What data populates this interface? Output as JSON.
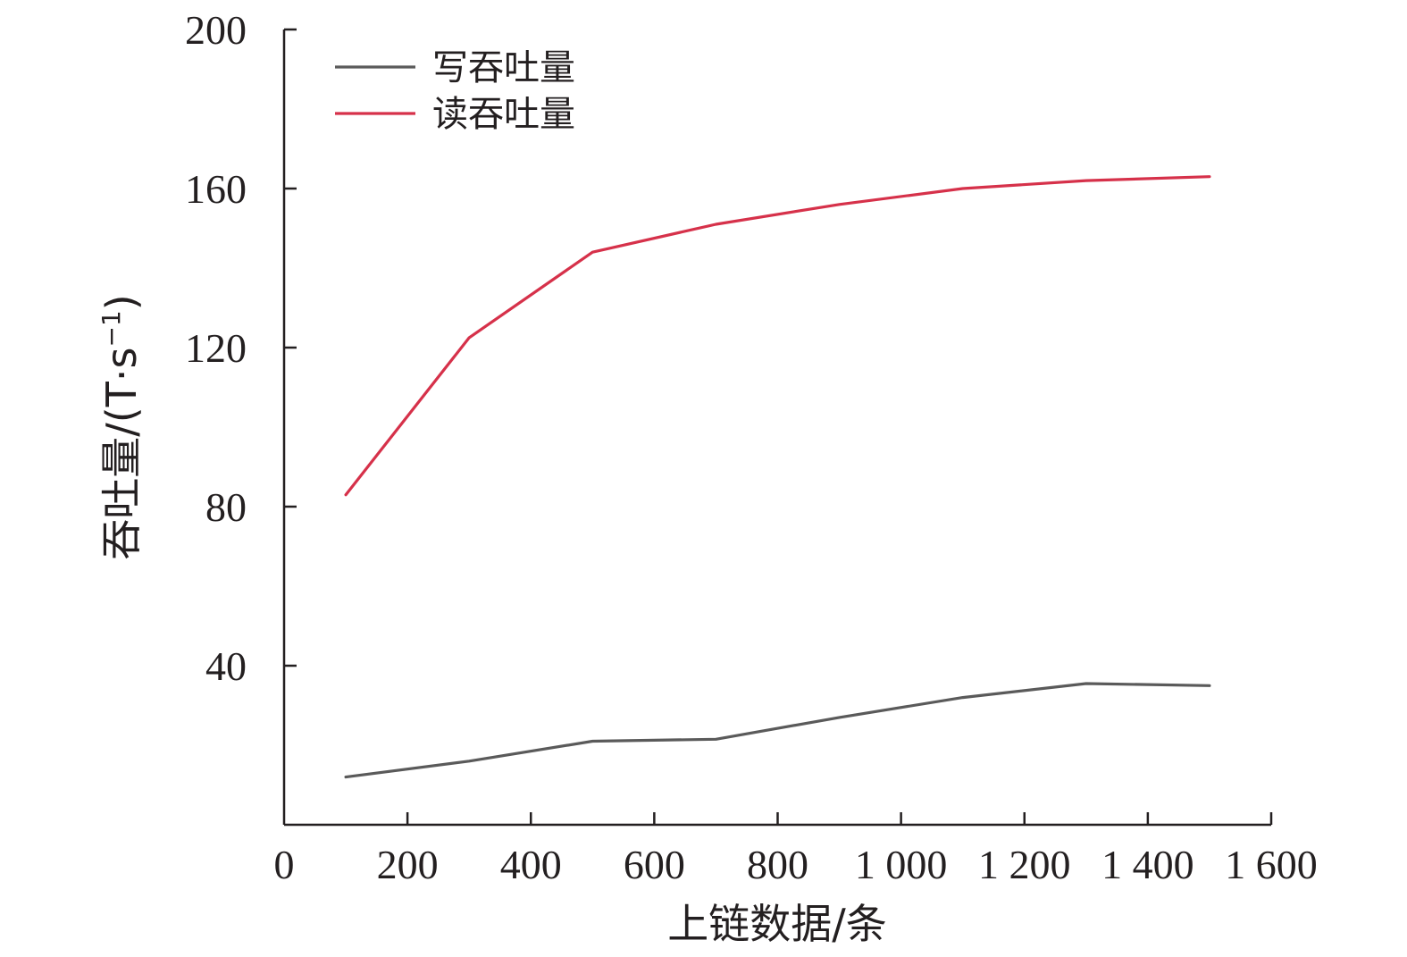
{
  "chart_data": {
    "type": "line",
    "title": "",
    "xlabel": "上链数据/条",
    "ylabel_main": "吞吐量/(T·s",
    "ylabel_sup": "−1",
    "ylabel_close": ")",
    "xlim": [
      0,
      1600
    ],
    "ylim": [
      0,
      200
    ],
    "x_ticks": [
      0,
      200,
      400,
      600,
      800,
      1000,
      1200,
      1400,
      1600
    ],
    "x_tick_labels": [
      "0",
      "200",
      "400",
      "600",
      "800",
      "1 000",
      "1 200",
      "1 400",
      "1 600"
    ],
    "y_ticks": [
      40,
      80,
      120,
      160,
      200
    ],
    "y_tick_labels": [
      "40",
      "80",
      "120",
      "160",
      "200"
    ],
    "legend_position": "top-left",
    "grid": false,
    "x": [
      100,
      300,
      500,
      700,
      900,
      1100,
      1300,
      1500
    ],
    "series": [
      {
        "name": "写吞吐量",
        "color": "#5a5a5a",
        "values": [
          12,
          16,
          21,
          21.5,
          27,
          32,
          35.5,
          35
        ]
      },
      {
        "name": "读吞吐量",
        "color": "#d6314a",
        "values": [
          83,
          122.5,
          144,
          151,
          156,
          160,
          162,
          163
        ]
      }
    ]
  }
}
